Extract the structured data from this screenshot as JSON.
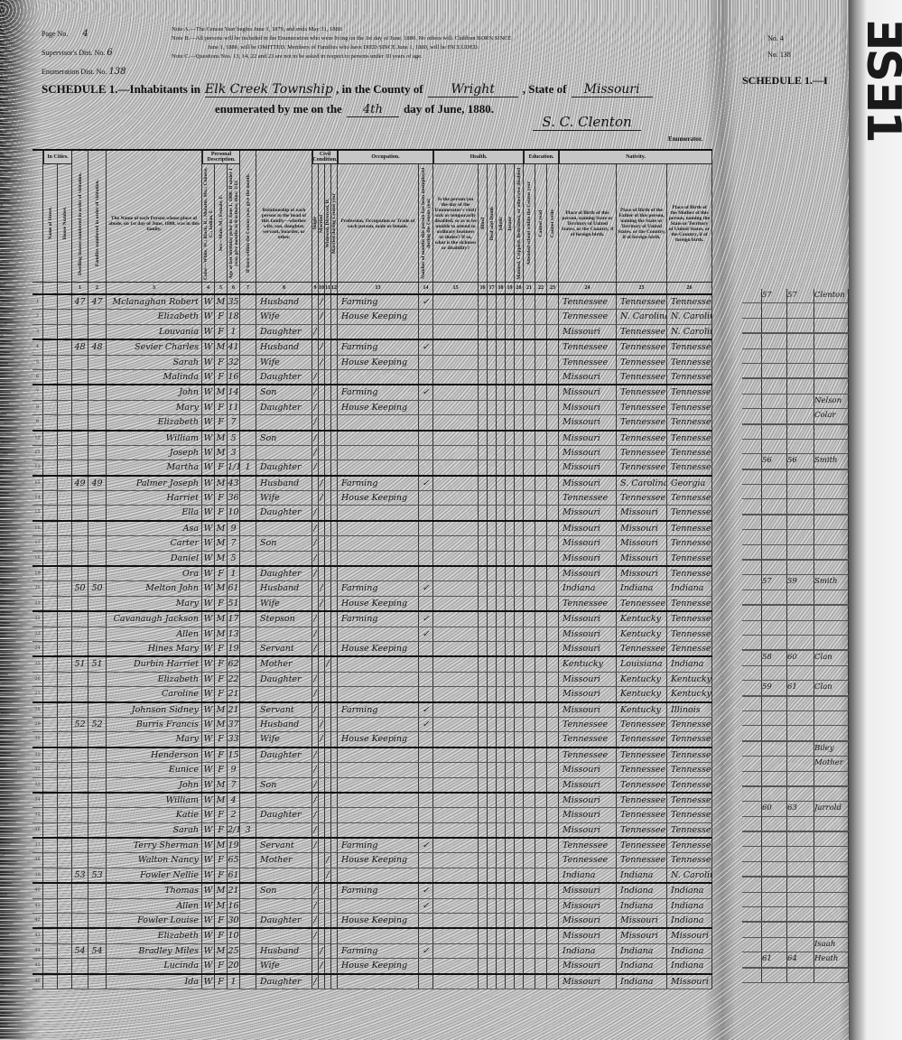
{
  "header": {
    "page_no_label": "Page No.",
    "page_no": "4",
    "supervisor_label": "Supervisor's Dist. No.",
    "supervisor_no": "6",
    "enum_label": "Enumeration Dist. No.",
    "enum_no": "138",
    "notes": [
      "Note A.—The Census Year begins June 1, 1879, and ends May 31, 1880.",
      "Note B.—All persons will be included in the Enumeration who were living on the 1st day of June, 1880. No others will. Children BORN SINCE",
      "June 1, 1880, will be OMITTED. Members of Families who have DIED SINCE June 1, 1880, will be INCLUDED.",
      "Note C.—Questions Nos. 13, 14, 22 and 23 are not to be asked in respect to persons under 10 years of age."
    ],
    "schedule_label": "SCHEDULE 1.—Inhabitants in",
    "township": "Elk Creek Township",
    "county_label": ", in the County of",
    "county": "Wright",
    "state_label": ", State of",
    "state": "Missouri",
    "enumerated_label": "enumerated by me on the",
    "day": "4th",
    "date_suffix": "day of June, 1880.",
    "signature": "S. C. Clenton",
    "enumerator_label": "Enumerator."
  },
  "right_header": {
    "page_no": "No. 4",
    "enum_no": "No. 138",
    "schedule": "SCHEDULE 1.—I",
    "stamp": "ƎSƎ1"
  },
  "columns": [
    {
      "h": "",
      "n": ""
    },
    {
      "h": "Name of Street.",
      "n": ""
    },
    {
      "h": "House Number.",
      "n": ""
    },
    {
      "h": "Dwelling houses numbered in order of visitation.",
      "n": "1"
    },
    {
      "h": "Families numbered in order of visitation.",
      "n": "2"
    },
    {
      "h": "The Name of each Person whose place of abode, on 1st day of June, 1880, was in this family.",
      "n": "3"
    },
    {
      "h": "Color—White, W.; Black, B.; Mulatto, Mu.; Chinese, C.; Indian, I.",
      "n": "4"
    },
    {
      "h": "Sex—Male, M.; Female, F.",
      "n": "5"
    },
    {
      "h": "Age at last birthday prior to June 1, 1880. If under 1 year, give months in fractions, thus: 3/12",
      "n": "6"
    },
    {
      "h": "If born within the Census year, give the month.",
      "n": "7"
    },
    {
      "h": "Relationship of each person to the head of this family—whether wife, son, daughter, servant, boarder, or other.",
      "n": "8"
    },
    {
      "h": "Single",
      "n": "9"
    },
    {
      "h": "Married",
      "n": "10"
    },
    {
      "h": "Widowed, Divorced, D.",
      "n": "11"
    },
    {
      "h": "Married during Census year",
      "n": "12"
    },
    {
      "h": "Profession, Occupation or Trade of each person, male or female.",
      "n": "13"
    },
    {
      "h": "Number of months this person has been unemployed during the Census year.",
      "n": "14"
    },
    {
      "h": "Is the person (on the day of the Enumerator's visit) sick or temporarily disabled, so as to be unable to attend to ordinary business or duties? If so, what is the sickness or disability?",
      "n": "15"
    },
    {
      "h": "Blind",
      "n": "16"
    },
    {
      "h": "Deaf and Dumb",
      "n": "17"
    },
    {
      "h": "Idiotic",
      "n": "18"
    },
    {
      "h": "Insane",
      "n": "19"
    },
    {
      "h": "Maimed, Crippled, Bedridden, or otherwise disabled",
      "n": "20"
    },
    {
      "h": "Attended school within the Census year",
      "n": "21"
    },
    {
      "h": "Cannot read",
      "n": "22"
    },
    {
      "h": "Cannot write",
      "n": "23"
    },
    {
      "h": "Place of Birth of this person, naming State or Territory of United States, or the Country, if of foreign birth.",
      "n": "24"
    },
    {
      "h": "Place of Birth of the Father of this person, naming the State or Territory of United States, or the Country, if of foreign birth.",
      "n": "25"
    },
    {
      "h": "Place of Birth of the Mother of this person, naming the State or Territory of United States, or the Country, if of foreign birth.",
      "n": "26"
    }
  ],
  "group_headers": {
    "in_cities": "In Cities.",
    "personal": "Personal Description.",
    "civil": "Civil Condition.",
    "occupation": "Occupation.",
    "health": "Health.",
    "education": "Education.",
    "nativity": "Nativity."
  },
  "rows": [
    [
      "1",
      "47",
      "47",
      "Mclanaghan Robert",
      "W",
      "M",
      "35",
      "",
      "Husband",
      "M",
      "Farming",
      "✓",
      "Tennessee",
      "Tennessee",
      "Tennessee"
    ],
    [
      "2",
      "",
      "",
      "Elizabeth",
      "W",
      "F",
      "18",
      "",
      "Wife",
      "M",
      "House Keeping",
      "",
      "Tennessee",
      "N. Carolina",
      "N. Carolina"
    ],
    [
      "3",
      "",
      "",
      "Louvania",
      "W",
      "F",
      "1",
      "",
      "Daughter",
      "S",
      "",
      "",
      "Missouri",
      "Tennessee",
      "N. Carolina"
    ],
    [
      "4",
      "48",
      "48",
      "Sevier Charles",
      "W",
      "M",
      "41",
      "",
      "Husband",
      "M",
      "Farming",
      "✓",
      "Tennessee",
      "Tennessee",
      "Tennessee"
    ],
    [
      "5",
      "",
      "",
      "Sarah",
      "W",
      "F",
      "32",
      "",
      "Wife",
      "M",
      "House Keeping",
      "",
      "Tennessee",
      "Tennessee",
      "Tennessee"
    ],
    [
      "6",
      "",
      "",
      "Malinda",
      "W",
      "F",
      "16",
      "",
      "Daughter",
      "S",
      "",
      "",
      "Missouri",
      "Tennessee",
      "Tennessee"
    ],
    [
      "7",
      "",
      "",
      "John",
      "W",
      "M",
      "14",
      "",
      "Son",
      "S",
      "Farming",
      "✓",
      "Missouri",
      "Tennessee",
      "Tennessee"
    ],
    [
      "8",
      "",
      "",
      "Mary",
      "W",
      "F",
      "11",
      "",
      "Daughter",
      "S",
      "House Keeping",
      "",
      "Missouri",
      "Tennessee",
      "Tennessee"
    ],
    [
      "9",
      "",
      "",
      "Elizabeth",
      "W",
      "F",
      "7",
      "",
      "",
      "S",
      "",
      "",
      "Missouri",
      "Tennessee",
      "Tennessee"
    ],
    [
      "10",
      "",
      "",
      "William",
      "W",
      "M",
      "5",
      "",
      "Son",
      "S",
      "",
      "",
      "Missouri",
      "Tennessee",
      "Tennessee"
    ],
    [
      "11",
      "",
      "",
      "Joseph",
      "W",
      "M",
      "3",
      "",
      "",
      "S",
      "",
      "",
      "Missouri",
      "Tennessee",
      "Tennessee"
    ],
    [
      "12",
      "",
      "",
      "Martha",
      "W",
      "F",
      "1/12",
      "1",
      "Daughter",
      "S",
      "",
      "",
      "Missouri",
      "Tennessee",
      "Tennessee"
    ],
    [
      "13",
      "49",
      "49",
      "Palmer Joseph",
      "W",
      "M",
      "43",
      "",
      "Husband",
      "M",
      "Farming",
      "✓",
      "Missouri",
      "S. Carolina",
      "Georgia"
    ],
    [
      "14",
      "",
      "",
      "Harriet",
      "W",
      "F",
      "36",
      "",
      "Wife",
      "M",
      "House Keeping",
      "",
      "Tennessee",
      "Tennessee",
      "Tennessee"
    ],
    [
      "15",
      "",
      "",
      "Ella",
      "W",
      "F",
      "10",
      "",
      "Daughter",
      "S",
      "",
      "",
      "Missouri",
      "Missouri",
      "Tennessee"
    ],
    [
      "16",
      "",
      "",
      "Asa",
      "W",
      "M",
      "9",
      "",
      "",
      "S",
      "",
      "",
      "Missouri",
      "Missouri",
      "Tennessee"
    ],
    [
      "17",
      "",
      "",
      "Carter",
      "W",
      "M",
      "7",
      "",
      "Son",
      "S",
      "",
      "",
      "Missouri",
      "Missouri",
      "Tennessee"
    ],
    [
      "18",
      "",
      "",
      "Daniel",
      "W",
      "M",
      "5",
      "",
      "",
      "S",
      "",
      "",
      "Missouri",
      "Missouri",
      "Tennessee"
    ],
    [
      "19",
      "",
      "",
      "Ora",
      "W",
      "F",
      "1",
      "",
      "Daughter",
      "S",
      "",
      "",
      "Missouri",
      "Missouri",
      "Tennessee"
    ],
    [
      "20",
      "50",
      "50",
      "Melton John",
      "W",
      "M",
      "61",
      "",
      "Husband",
      "M",
      "Farming",
      "✓",
      "Indiana",
      "Indiana",
      "Indiana"
    ],
    [
      "21",
      "",
      "",
      "Mary",
      "W",
      "F",
      "51",
      "",
      "Wife",
      "M",
      "House Keeping",
      "",
      "Tennessee",
      "Tennessee",
      "Tennessee"
    ],
    [
      "22",
      "",
      "",
      "Cavanaugh Jackson",
      "W",
      "M",
      "17",
      "",
      "Stepson",
      "S",
      "Farming",
      "✓",
      "Missouri",
      "Kentucky",
      "Tennessee"
    ],
    [
      "23",
      "",
      "",
      "Allen",
      "W",
      "M",
      "13",
      "",
      "",
      "S",
      "",
      "✓",
      "Missouri",
      "Kentucky",
      "Tennessee"
    ],
    [
      "24",
      "",
      "",
      "Hines Mary",
      "W",
      "F",
      "19",
      "",
      "Servant",
      "S",
      "House Keeping",
      "",
      "Missouri",
      "Tennessee",
      "Tennessee"
    ],
    [
      "25",
      "51",
      "51",
      "Durbin Harriet",
      "W",
      "F",
      "62",
      "",
      "Mother",
      "W",
      "",
      "",
      "Kentucky",
      "Louisiana",
      "Indiana"
    ],
    [
      "26",
      "",
      "",
      "Elizabeth",
      "W",
      "F",
      "22",
      "",
      "Daughter",
      "S",
      "",
      "",
      "Missouri",
      "Kentucky",
      "Kentucky"
    ],
    [
      "27",
      "",
      "",
      "Caroline",
      "W",
      "F",
      "21",
      "",
      "",
      "S",
      "",
      "",
      "Missouri",
      "Kentucky",
      "Kentucky"
    ],
    [
      "28",
      "",
      "",
      "Johnson Sidney",
      "W",
      "M",
      "21",
      "",
      "Servant",
      "S",
      "Farming",
      "✓",
      "Missouri",
      "Kentucky",
      "Illinois"
    ],
    [
      "29",
      "52",
      "52",
      "Burris Francis",
      "W",
      "M",
      "37",
      "",
      "Husband",
      "M",
      "",
      "✓",
      "Tennessee",
      "Tennessee",
      "Tennessee"
    ],
    [
      "30",
      "",
      "",
      "Mary",
      "W",
      "F",
      "33",
      "",
      "Wife",
      "M",
      "House Keeping",
      "",
      "Tennessee",
      "Tennessee",
      "Tennessee"
    ],
    [
      "31",
      "",
      "",
      "Henderson",
      "W",
      "F",
      "15",
      "",
      "Daughter",
      "S",
      "",
      "",
      "Tennessee",
      "Tennessee",
      "Tennessee"
    ],
    [
      "32",
      "",
      "",
      "Eunice",
      "W",
      "F",
      "9",
      "",
      "",
      "S",
      "",
      "",
      "Missouri",
      "Tennessee",
      "Tennessee"
    ],
    [
      "33",
      "",
      "",
      "John",
      "W",
      "M",
      "7",
      "",
      "Son",
      "S",
      "",
      "",
      "Missouri",
      "Tennessee",
      "Tennessee"
    ],
    [
      "34",
      "",
      "",
      "William",
      "W",
      "M",
      "4",
      "",
      "",
      "S",
      "",
      "",
      "Missouri",
      "Tennessee",
      "Tennessee"
    ],
    [
      "35",
      "",
      "",
      "Katie",
      "W",
      "F",
      "2",
      "",
      "Daughter",
      "S",
      "",
      "",
      "Missouri",
      "Tennessee",
      "Tennessee"
    ],
    [
      "36",
      "",
      "",
      "Sarah",
      "W",
      "F",
      "2/12",
      "3",
      "",
      "S",
      "",
      "",
      "Missouri",
      "Tennessee",
      "Tennessee"
    ],
    [
      "37",
      "",
      "",
      "Terry Sherman",
      "W",
      "M",
      "19",
      "",
      "Servant",
      "S",
      "Farming",
      "✓",
      "Tennessee",
      "Tennessee",
      "Tennessee"
    ],
    [
      "38",
      "",
      "",
      "Walton Nancy",
      "W",
      "F",
      "65",
      "",
      "Mother",
      "W",
      "House Keeping",
      "",
      "Tennessee",
      "Tennessee",
      "Tennessee"
    ],
    [
      "39",
      "53",
      "53",
      "Fowler Nellie",
      "W",
      "F",
      "61",
      "",
      "",
      "W",
      "",
      "",
      "Indiana",
      "Indiana",
      "N. Carolina"
    ],
    [
      "40",
      "",
      "",
      "Thomas",
      "W",
      "M",
      "21",
      "",
      "Son",
      "S",
      "Farming",
      "✓",
      "Missouri",
      "Indiana",
      "Indiana"
    ],
    [
      "41",
      "",
      "",
      "Allen",
      "W",
      "M",
      "16",
      "",
      "",
      "S",
      "",
      "✓",
      "Missouri",
      "Indiana",
      "Indiana"
    ],
    [
      "42",
      "",
      "",
      "Fowler Louise",
      "W",
      "F",
      "30",
      "",
      "Daughter",
      "S",
      "House Keeping",
      "",
      "Missouri",
      "Missouri",
      "Indiana"
    ],
    [
      "43",
      "",
      "",
      "Elizabeth",
      "W",
      "F",
      "10",
      "",
      "",
      "S",
      "",
      "",
      "Missouri",
      "Missouri",
      "Missouri"
    ],
    [
      "44",
      "54",
      "54",
      "Bradley Miles",
      "W",
      "M",
      "25",
      "",
      "Husband",
      "M",
      "Farming",
      "✓",
      "Indiana",
      "Indiana",
      "Indiana"
    ],
    [
      "45",
      "",
      "",
      "Lucinda",
      "W",
      "F",
      "20",
      "",
      "Wife",
      "M",
      "House Keeping",
      "",
      "Missouri",
      "Indiana",
      "Indiana"
    ],
    [
      "46",
      "",
      "",
      "Ida",
      "W",
      "F",
      "1",
      "",
      "Daughter",
      "S",
      "",
      "",
      "Missouri",
      "Indiana",
      "Missouri"
    ]
  ],
  "right_page_rows": [
    [
      "57",
      "57",
      "Clenton"
    ],
    [
      "",
      "",
      ""
    ],
    [
      "",
      "",
      ""
    ],
    [
      "",
      "",
      ""
    ],
    [
      "",
      "",
      ""
    ],
    [
      "",
      "",
      ""
    ],
    [
      "",
      "",
      ""
    ],
    [
      "",
      "",
      "Nelson"
    ],
    [
      "",
      "",
      "Colar"
    ],
    [
      "",
      "",
      ""
    ],
    [
      "",
      "",
      ""
    ],
    [
      "56",
      "56",
      "Smith"
    ],
    [
      "",
      "",
      ""
    ],
    [
      "",
      "",
      ""
    ],
    [
      "",
      "",
      ""
    ],
    [
      "",
      "",
      ""
    ],
    [
      "",
      "",
      ""
    ],
    [
      "",
      "",
      ""
    ],
    [
      "",
      "",
      ""
    ],
    [
      "57",
      "59",
      "Smith"
    ],
    [
      "",
      "",
      ""
    ],
    [
      "",
      "",
      ""
    ],
    [
      "",
      "",
      ""
    ],
    [
      "",
      "",
      ""
    ],
    [
      "58",
      "60",
      "Clan"
    ],
    [
      "",
      "",
      ""
    ],
    [
      "59",
      "61",
      "Clan"
    ],
    [
      "",
      "",
      ""
    ],
    [
      "",
      "",
      ""
    ],
    [
      "",
      "",
      ""
    ],
    [
      "",
      "",
      "Biley"
    ],
    [
      "",
      "",
      "Mother"
    ],
    [
      "",
      "",
      ""
    ],
    [
      "",
      "",
      ""
    ],
    [
      "60",
      "63",
      "Jarrold"
    ],
    [
      "",
      "",
      ""
    ],
    [
      "",
      "",
      ""
    ],
    [
      "",
      "",
      ""
    ],
    [
      "",
      "",
      ""
    ],
    [
      "",
      "",
      ""
    ],
    [
      "",
      "",
      ""
    ],
    [
      "",
      "",
      ""
    ],
    [
      "",
      "",
      ""
    ],
    [
      "",
      "",
      "Isaah"
    ],
    [
      "61",
      "64",
      "Heath"
    ],
    [
      "",
      "",
      ""
    ]
  ]
}
